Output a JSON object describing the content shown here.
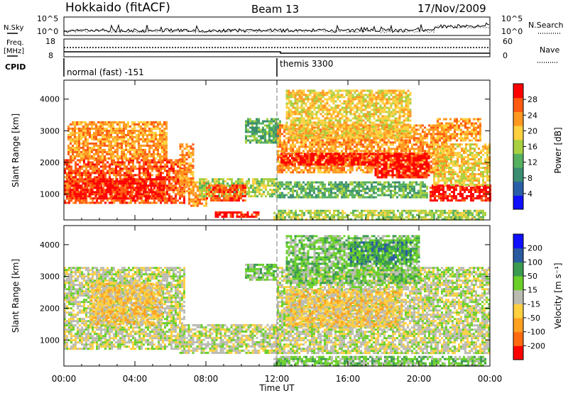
{
  "header": {
    "station": "Hokkaido (fitACF)",
    "beam": "Beam 13",
    "date": "17/Nov/2009"
  },
  "top_panel": {
    "left_label": "N.Sky",
    "right_label": "N.Search",
    "left_ticks": [
      "10^5",
      "10^0"
    ],
    "right_ticks": [
      "10^5",
      "10^0"
    ]
  },
  "freq_panel": {
    "left_label_line1": "Freq.",
    "left_label_line2": "[MHz]",
    "left_ticks": [
      "18",
      "8"
    ],
    "right_label": "Nave",
    "right_ticks": [
      "60",
      "0"
    ]
  },
  "cpid_panel": {
    "label": "CPID",
    "segments": [
      {
        "start_hour": 0,
        "text": "normal (fast) -151"
      },
      {
        "start_hour": 12,
        "text": "themis 3300"
      }
    ]
  },
  "colors": {
    "power_scale": [
      "#1010ff",
      "#2a5fa8",
      "#3a8d70",
      "#55b060",
      "#a8d040",
      "#ffd040",
      "#ff9820",
      "#ff5a10",
      "#ff0000"
    ],
    "velocity_scale": [
      "#ff0000",
      "#ff6a10",
      "#ffa020",
      "#ffd040",
      "#bbbbb2",
      "#6ad028",
      "#3a9a50",
      "#2a5aa0",
      "#1010ff"
    ]
  },
  "chart_data": [
    {
      "type": "heatmap",
      "title": "Power",
      "ylabel": "Slant Range [km]",
      "xlim": [
        0,
        24
      ],
      "ylim": [
        180,
        4600
      ],
      "yticks": [
        "1000",
        "2000",
        "3000",
        "4000"
      ],
      "colorbar": {
        "label": "Power [dB]",
        "ticks": [
          "4",
          "8",
          "12",
          "16",
          "20",
          "24",
          "28"
        ]
      },
      "blocks": [
        {
          "x0": 0.0,
          "x1": 6.8,
          "y0": 700,
          "y1": 2100,
          "level": 7
        },
        {
          "x0": 0.2,
          "x1": 5.8,
          "y0": 2100,
          "y1": 3300,
          "level": 6
        },
        {
          "x0": 0.3,
          "x1": 5.6,
          "y0": 880,
          "y1": 1500,
          "level": 8
        },
        {
          "x0": 6.5,
          "x1": 7.3,
          "y0": 1000,
          "y1": 2600,
          "level": 6
        },
        {
          "x0": 7.0,
          "x1": 8.0,
          "y0": 600,
          "y1": 1400,
          "level": 6
        },
        {
          "x0": 7.6,
          "x1": 12.0,
          "y0": 900,
          "y1": 1500,
          "level": 4
        },
        {
          "x0": 8.0,
          "x1": 10.2,
          "y0": 800,
          "y1": 1300,
          "level": 7
        },
        {
          "x0": 8.5,
          "x1": 11.0,
          "y0": 250,
          "y1": 450,
          "level": 8
        },
        {
          "x0": 10.2,
          "x1": 12.2,
          "y0": 2600,
          "y1": 3400,
          "level": 3
        },
        {
          "x0": 12.0,
          "x1": 21.5,
          "y0": 1700,
          "y1": 3200,
          "level": 6
        },
        {
          "x0": 12.2,
          "x1": 17.5,
          "y0": 1900,
          "y1": 2300,
          "level": 8
        },
        {
          "x0": 17.5,
          "x1": 20.6,
          "y0": 1500,
          "y1": 2300,
          "level": 8
        },
        {
          "x0": 12.5,
          "x1": 19.5,
          "y0": 2800,
          "y1": 4300,
          "level": 5
        },
        {
          "x0": 12.0,
          "x1": 20.5,
          "y0": 900,
          "y1": 1400,
          "level": 3
        },
        {
          "x0": 11.8,
          "x1": 23.8,
          "y0": 200,
          "y1": 500,
          "level": 4
        },
        {
          "x0": 20.6,
          "x1": 24.0,
          "y0": 800,
          "y1": 1300,
          "level": 8
        },
        {
          "x0": 20.8,
          "x1": 24.0,
          "y0": 1300,
          "y1": 2600,
          "level": 5
        },
        {
          "x0": 21.0,
          "x1": 23.5,
          "y0": 2700,
          "y1": 3400,
          "level": 6
        }
      ]
    },
    {
      "type": "heatmap",
      "title": "Velocity",
      "ylabel": "Slant Range [km]",
      "xlabel": "Time UT",
      "xlim": [
        0,
        24
      ],
      "ylim": [
        180,
        4600
      ],
      "xticks": [
        "00:00",
        "04:00",
        "08:00",
        "12:00",
        "16:00",
        "20:00",
        "00:00"
      ],
      "yticks": [
        "1000",
        "2000",
        "3000",
        "4000"
      ],
      "colorbar": {
        "label": "Velocity [m s⁻¹]",
        "ticks": [
          "-200",
          "-100",
          "-50",
          "-15",
          "15",
          "50",
          "100",
          "200"
        ]
      },
      "blocks": [
        {
          "x0": 0.0,
          "x1": 6.8,
          "y0": 700,
          "y1": 3300,
          "level": 4
        },
        {
          "x0": 1.5,
          "x1": 5.5,
          "y0": 1500,
          "y1": 2800,
          "level": 3
        },
        {
          "x0": 6.5,
          "x1": 12.2,
          "y0": 600,
          "y1": 1500,
          "level": 4
        },
        {
          "x0": 10.2,
          "x1": 12.0,
          "y0": 2900,
          "y1": 3400,
          "level": 5
        },
        {
          "x0": 12.0,
          "x1": 24.0,
          "y0": 600,
          "y1": 3300,
          "level": 4
        },
        {
          "x0": 12.5,
          "x1": 20.0,
          "y0": 2800,
          "y1": 4300,
          "level": 5
        },
        {
          "x0": 16.0,
          "x1": 19.5,
          "y0": 3400,
          "y1": 4100,
          "level": 6
        },
        {
          "x0": 12.5,
          "x1": 19.0,
          "y0": 1400,
          "y1": 2600,
          "level": 3
        },
        {
          "x0": 11.8,
          "x1": 23.8,
          "y0": 200,
          "y1": 500,
          "level": 5
        }
      ]
    }
  ]
}
